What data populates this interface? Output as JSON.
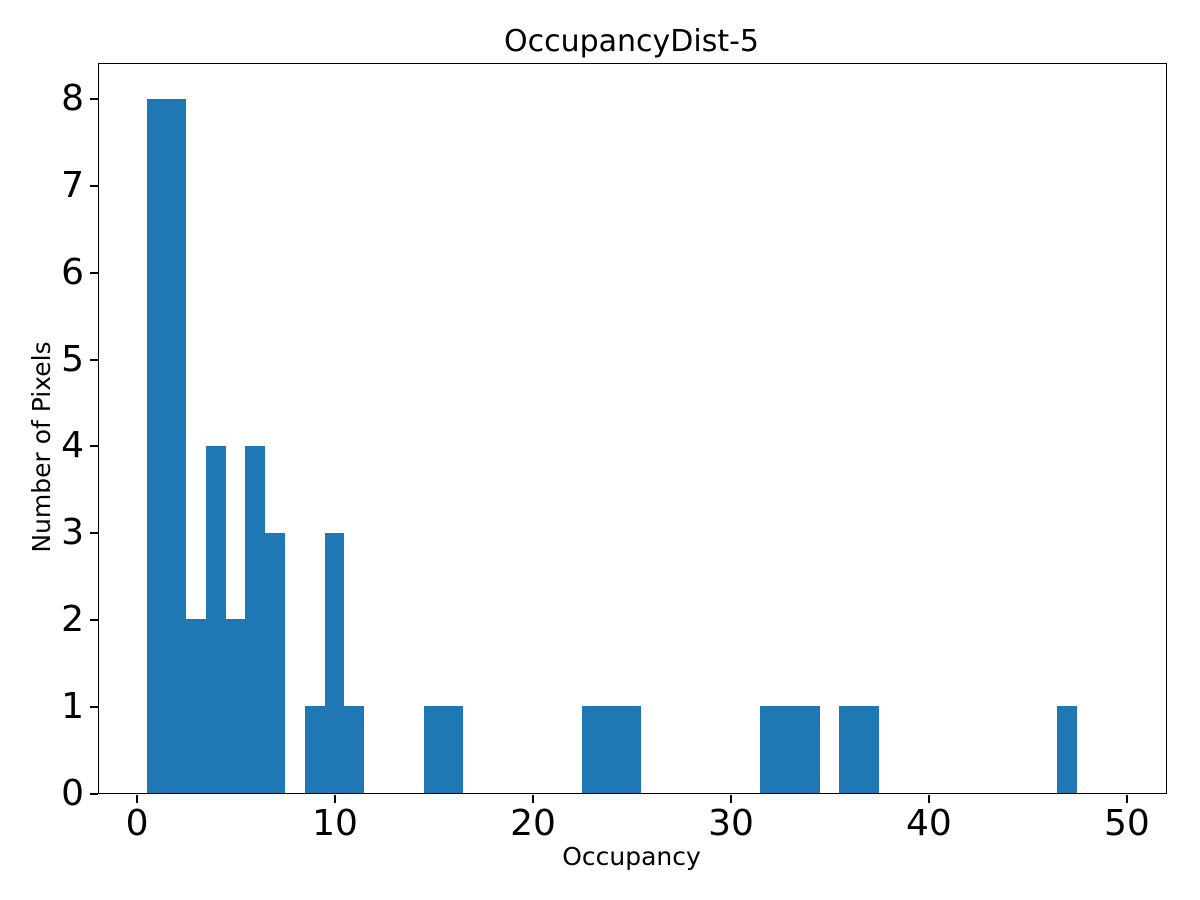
{
  "title": "OccupancyDist-5",
  "axes": {
    "x": {
      "label": "Occupancy",
      "ticks": [
        0,
        10,
        20,
        30,
        40,
        50
      ],
      "min": -1.9,
      "max": 52.0
    },
    "y": {
      "label": "Number of Pixels",
      "ticks": [
        0,
        1,
        2,
        3,
        4,
        5,
        6,
        7,
        8
      ],
      "min": 0,
      "max": 8.4
    }
  },
  "colors": {
    "bar": "#1f77b4",
    "axis": "#000000",
    "background": "#ffffff",
    "text": "#000000"
  },
  "chart_data": {
    "type": "bar",
    "subtype": "histogram",
    "title": "OccupancyDist-5",
    "xlabel": "Occupancy",
    "ylabel": "Number of Pixels",
    "xlim": [
      -1.9,
      52.0
    ],
    "ylim": [
      0,
      8.4
    ],
    "grid": false,
    "legend": false,
    "bin_width": 1,
    "first_bin_left_edge": 0.5,
    "bin_centers": [
      1,
      2,
      3,
      4,
      5,
      6,
      7,
      8,
      9,
      10,
      11,
      12,
      13,
      14,
      15,
      16,
      17,
      18,
      19,
      20,
      21,
      22,
      23,
      24,
      25,
      26,
      27,
      28,
      29,
      30,
      31,
      32,
      33,
      34,
      35,
      36,
      37,
      38,
      39,
      40,
      41,
      42,
      43,
      44,
      45,
      46,
      47,
      48,
      49
    ],
    "counts": [
      8,
      8,
      2,
      4,
      2,
      4,
      3,
      0,
      1,
      3,
      1,
      0,
      0,
      0,
      1,
      1,
      0,
      0,
      0,
      0,
      0,
      0,
      1,
      1,
      1,
      0,
      0,
      0,
      0,
      0,
      0,
      1,
      1,
      1,
      0,
      1,
      1,
      0,
      0,
      0,
      0,
      0,
      0,
      0,
      0,
      0,
      1,
      0,
      0
    ]
  }
}
